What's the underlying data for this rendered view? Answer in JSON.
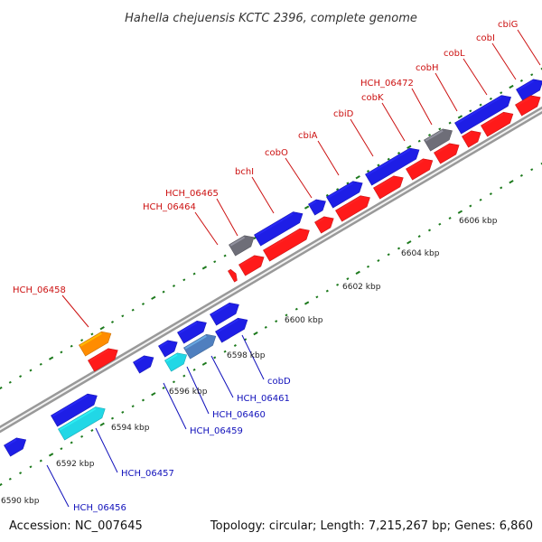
{
  "title": "Hahella chejuensis KCTC 2396, complete genome",
  "footer": {
    "accession": "Accession: NC_007645",
    "summary": "Topology: circular; Length: 7,215,267 bp; Genes: 6,860"
  },
  "colors": {
    "blue_gene": "#1e1ee6",
    "red_gene": "#ff1a1a",
    "gray_gene": "#6e6e78",
    "orange_gene": "#ff8c00",
    "cyan_gene": "#21d7e6",
    "steel_gene": "#4f7fbf",
    "red_label": "#cc1111",
    "blue_label": "#1111bb",
    "tick_green": "#1d7a1d"
  },
  "ticks": [
    "6590 kbp",
    "6592 kbp",
    "6594 kbp",
    "6596 kbp",
    "6598 kbp",
    "6600 kbp",
    "6602 kbp",
    "6604 kbp",
    "6606 kbp"
  ],
  "labels_top": [
    "HCH_06458",
    "HCH_06464",
    "HCH_06465",
    "bchI",
    "cobO",
    "cbiA",
    "cbiD",
    "cobK",
    "HCH_06472",
    "cobH",
    "cobL",
    "cobI",
    "cbiG"
  ],
  "labels_bottom": [
    "HCH_06456",
    "HCH_06457",
    "HCH_06459",
    "HCH_06460",
    "HCH_06461",
    "cobD"
  ]
}
